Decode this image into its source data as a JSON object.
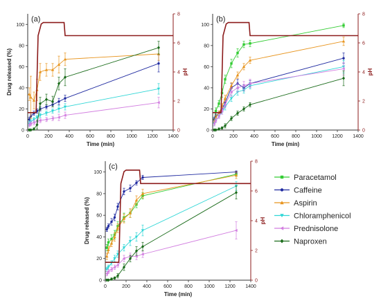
{
  "legend": {
    "placement": "right-of-panel-c",
    "entries": [
      {
        "label": "Paracetamol",
        "color": "#33cc33",
        "marker": "square"
      },
      {
        "label": "Caffeine",
        "color": "#1f2aa0",
        "marker": "circle"
      },
      {
        "label": "Aspirin",
        "color": "#e8951f",
        "marker": "triangle-up"
      },
      {
        "label": "Chloramphenicol",
        "color": "#2ed6d6",
        "marker": "triangle-down"
      },
      {
        "label": "Prednisolone",
        "color": "#d27ee0",
        "marker": "triangle-left"
      },
      {
        "label": "Naproxen",
        "color": "#1a6b1a",
        "marker": "diamond"
      }
    ]
  },
  "ph_line_color": "#8b1a1a",
  "chart_data": [
    {
      "type": "line",
      "panel_label": "(a)",
      "xlabel": "Time (min)",
      "ylabel": "Drug released (%)",
      "y2label": "pH",
      "xlim": [
        0,
        1400
      ],
      "ylim": [
        0,
        110
      ],
      "y2lim": [
        0,
        8
      ],
      "xticks": [
        0,
        200,
        400,
        600,
        800,
        1000,
        1200,
        1400
      ],
      "yticks": [
        0,
        20,
        40,
        60,
        80,
        100
      ],
      "y2ticks": [
        0,
        2,
        4,
        6,
        8
      ],
      "grid": false,
      "ph": {
        "x": [
          0,
          80,
          82,
          100,
          130,
          150,
          350,
          360,
          1400
        ],
        "y": [
          1.2,
          1.2,
          1.5,
          6.5,
          7.3,
          7.4,
          7.4,
          6.5,
          6.5
        ]
      },
      "series": [
        {
          "name": "Caffeine",
          "x": [
            15,
            30,
            60,
            90,
            120,
            180,
            240,
            300,
            360,
            1260
          ],
          "y": [
            10,
            13,
            16,
            18,
            20,
            22,
            24,
            27,
            30,
            63
          ],
          "err": [
            2,
            2,
            2,
            2,
            2,
            2,
            2,
            3,
            3,
            8
          ]
        },
        {
          "name": "Aspirin",
          "x": [
            15,
            30,
            60,
            90,
            120,
            180,
            240,
            300,
            360,
            1260
          ],
          "y": [
            34,
            31,
            28,
            38,
            55,
            57,
            57,
            62,
            67,
            72
          ],
          "err": [
            6,
            20,
            8,
            10,
            8,
            6,
            6,
            8,
            6,
            6
          ]
        },
        {
          "name": "Chloramphenicol",
          "x": [
            15,
            30,
            60,
            90,
            120,
            180,
            240,
            300,
            360,
            1260
          ],
          "y": [
            6,
            8,
            10,
            12,
            14,
            16,
            18,
            20,
            22,
            39
          ],
          "err": [
            2,
            2,
            2,
            2,
            2,
            2,
            2,
            3,
            3,
            5
          ]
        },
        {
          "name": "Prednisolone",
          "x": [
            15,
            30,
            60,
            90,
            120,
            180,
            240,
            300,
            360,
            1260
          ],
          "y": [
            5,
            6,
            7,
            8,
            9,
            10,
            11,
            12,
            14,
            26
          ],
          "err": [
            2,
            2,
            2,
            2,
            2,
            2,
            2,
            3,
            3,
            5
          ]
        },
        {
          "name": "Naproxen",
          "x": [
            15,
            30,
            60,
            90,
            120,
            180,
            240,
            300,
            360,
            1260
          ],
          "y": [
            0,
            0,
            1,
            5,
            25,
            29,
            27,
            44,
            50,
            78
          ],
          "err": [
            1,
            1,
            1,
            4,
            6,
            5,
            5,
            6,
            8,
            6
          ]
        }
      ]
    },
    {
      "type": "line",
      "panel_label": "(b)",
      "xlabel": "Time (min)",
      "ylabel": "",
      "y2label": "pH",
      "xlim": [
        0,
        1400
      ],
      "ylim": [
        0,
        110
      ],
      "y2lim": [
        0,
        8
      ],
      "xticks": [
        0,
        200,
        400,
        600,
        800,
        1000,
        1200,
        1400
      ],
      "yticks": [
        0,
        20,
        40,
        60,
        80,
        100
      ],
      "y2ticks": [
        0,
        2,
        4,
        6,
        8
      ],
      "grid": false,
      "ph": {
        "x": [
          0,
          80,
          82,
          100,
          130,
          150,
          350,
          360,
          1400
        ],
        "y": [
          1.2,
          1.2,
          1.5,
          6.5,
          7.3,
          7.4,
          7.4,
          6.5,
          6.5
        ]
      },
      "series": [
        {
          "name": "Paracetamol",
          "x": [
            15,
            30,
            60,
            90,
            120,
            180,
            240,
            300,
            360,
            1260
          ],
          "y": [
            10,
            18,
            25,
            35,
            48,
            63,
            73,
            81,
            82,
            99
          ],
          "err": [
            2,
            3,
            3,
            4,
            4,
            4,
            4,
            3,
            3,
            2
          ]
        },
        {
          "name": "Caffeine",
          "x": [
            15,
            30,
            60,
            90,
            120,
            180,
            240,
            300,
            360,
            1260
          ],
          "y": [
            10,
            13,
            16,
            20,
            26,
            40,
            44,
            40,
            44,
            68
          ],
          "err": [
            2,
            2,
            2,
            3,
            3,
            4,
            4,
            3,
            3,
            5
          ]
        },
        {
          "name": "Aspirin",
          "x": [
            15,
            30,
            60,
            90,
            120,
            180,
            240,
            300,
            360,
            1260
          ],
          "y": [
            8,
            12,
            16,
            22,
            30,
            42,
            52,
            60,
            66,
            84
          ],
          "err": [
            2,
            2,
            2,
            3,
            3,
            3,
            3,
            3,
            3,
            4
          ]
        },
        {
          "name": "Chloramphenicol",
          "x": [
            15,
            30,
            60,
            90,
            120,
            180,
            240,
            300,
            360,
            1260
          ],
          "y": [
            6,
            9,
            13,
            17,
            22,
            30,
            36,
            38,
            42,
            60
          ],
          "err": [
            2,
            2,
            2,
            2,
            3,
            3,
            3,
            3,
            3,
            6
          ]
        },
        {
          "name": "Prednisolone",
          "x": [
            15,
            30,
            60,
            90,
            120,
            180,
            240,
            300,
            360,
            1260
          ],
          "y": [
            6,
            9,
            13,
            18,
            24,
            36,
            40,
            42,
            44,
            58
          ],
          "err": [
            2,
            2,
            2,
            3,
            3,
            4,
            4,
            4,
            4,
            6
          ]
        },
        {
          "name": "Naproxen",
          "x": [
            15,
            30,
            60,
            90,
            120,
            180,
            240,
            300,
            360,
            1260
          ],
          "y": [
            0,
            0,
            1,
            2,
            4,
            11,
            16,
            20,
            24,
            49
          ],
          "err": [
            1,
            1,
            1,
            1,
            2,
            2,
            2,
            2,
            2,
            7
          ]
        }
      ]
    },
    {
      "type": "line",
      "panel_label": "(c)",
      "xlabel": "Time (min)",
      "ylabel": "Drug released (%)",
      "y2label": "pH",
      "xlim": [
        0,
        1400
      ],
      "ylim": [
        0,
        110
      ],
      "y2lim": [
        0,
        8
      ],
      "xticks": [
        0,
        200,
        400,
        600,
        800,
        1000,
        1200,
        1400
      ],
      "yticks": [
        0,
        20,
        40,
        60,
        80,
        100
      ],
      "y2ticks": [
        0,
        2,
        4,
        6,
        8
      ],
      "grid": false,
      "ph": {
        "x": [
          0,
          130,
          132,
          150,
          180,
          200,
          330,
          340,
          1400
        ],
        "y": [
          1.2,
          1.2,
          1.5,
          6.5,
          7.3,
          7.4,
          7.4,
          6.5,
          6.5
        ]
      },
      "series": [
        {
          "name": "Paracetamol",
          "x": [
            15,
            30,
            60,
            90,
            120,
            180,
            240,
            300,
            360,
            1260
          ],
          "y": [
            30,
            35,
            38,
            42,
            50,
            58,
            62,
            70,
            78,
            98
          ],
          "err": [
            3,
            3,
            4,
            4,
            4,
            4,
            4,
            3,
            3,
            2
          ]
        },
        {
          "name": "Caffeine",
          "x": [
            15,
            30,
            60,
            90,
            120,
            180,
            240,
            300,
            360,
            1260
          ],
          "y": [
            47,
            50,
            54,
            58,
            68,
            82,
            85,
            90,
            95,
            100
          ],
          "err": [
            2,
            2,
            3,
            3,
            3,
            3,
            3,
            2,
            2,
            1
          ]
        },
        {
          "name": "Aspirin",
          "x": [
            15,
            30,
            60,
            90,
            120,
            180,
            240,
            300,
            360,
            1260
          ],
          "y": [
            22,
            28,
            34,
            40,
            48,
            57,
            62,
            74,
            80,
            97
          ],
          "err": [
            3,
            3,
            3,
            4,
            4,
            4,
            4,
            4,
            4,
            3
          ]
        },
        {
          "name": "Chloramphenicol",
          "x": [
            15,
            30,
            60,
            90,
            120,
            180,
            240,
            300,
            360,
            1260
          ],
          "y": [
            10,
            12,
            16,
            20,
            24,
            30,
            36,
            40,
            46,
            87
          ],
          "err": [
            2,
            2,
            2,
            3,
            3,
            3,
            4,
            4,
            5,
            4
          ]
        },
        {
          "name": "Prednisolone",
          "x": [
            15,
            30,
            60,
            90,
            120,
            180,
            240,
            300,
            360,
            1260
          ],
          "y": [
            6,
            8,
            10,
            12,
            14,
            20,
            22,
            22,
            24,
            46
          ],
          "err": [
            2,
            2,
            2,
            2,
            2,
            3,
            3,
            3,
            3,
            8
          ]
        },
        {
          "name": "Naproxen",
          "x": [
            15,
            30,
            60,
            90,
            120,
            180,
            240,
            300,
            360,
            1260
          ],
          "y": [
            0,
            0,
            1,
            2,
            4,
            12,
            20,
            27,
            31,
            81
          ],
          "err": [
            1,
            1,
            1,
            1,
            2,
            3,
            3,
            4,
            4,
            6
          ]
        }
      ]
    }
  ]
}
